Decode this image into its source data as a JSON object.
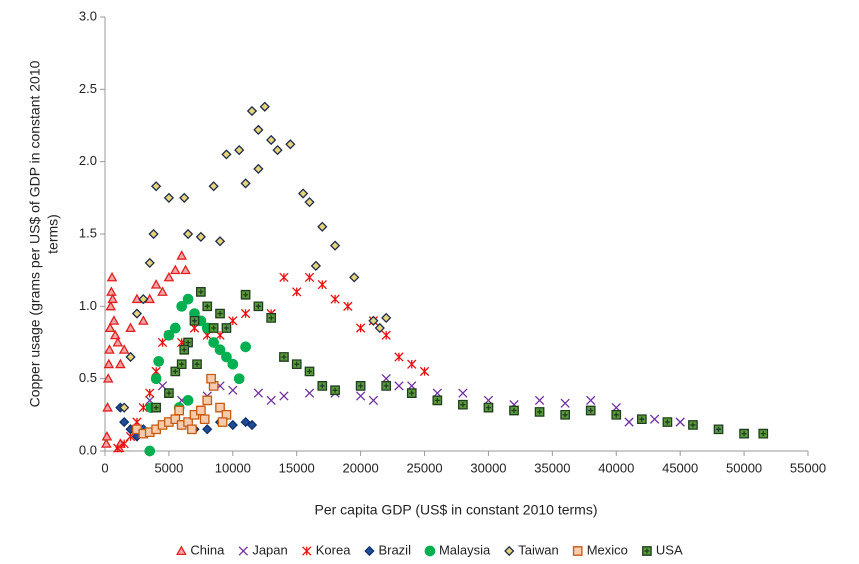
{
  "chart_data": {
    "type": "scatter",
    "xlabel": "Per capita GDP (US$ in constant 2010 terms)",
    "ylabel": [
      "Copper usage (grams per US$ of GDP in constant 2010",
      "terms)"
    ],
    "xlim": [
      0,
      55000
    ],
    "xticks": [
      0,
      5000,
      10000,
      15000,
      20000,
      25000,
      30000,
      35000,
      40000,
      45000,
      50000,
      55000
    ],
    "ylim": [
      0,
      3
    ],
    "yticks": [
      {
        "value": 0,
        "label": "0.0"
      },
      0.5,
      {
        "value": 1,
        "label": "1.0"
      },
      1.5,
      {
        "value": 2,
        "label": "2.0"
      },
      2.5,
      {
        "value": 3,
        "label": "3.0"
      }
    ],
    "legend": "bottom",
    "series": [
      {
        "name": "China",
        "marker": "triangle",
        "color": "#e02020",
        "fill": "#f4a6a6",
        "x": [
          100,
          150,
          200,
          250,
          300,
          350,
          400,
          450,
          500,
          550,
          600,
          700,
          800,
          1000,
          1200,
          1500,
          2000,
          2500,
          3000,
          3500,
          4000,
          4500,
          5000,
          5500,
          6000,
          6300,
          1100,
          1200
        ],
        "values": [
          0.05,
          0.1,
          0.3,
          0.5,
          0.6,
          0.7,
          0.85,
          1.0,
          1.1,
          1.2,
          1.05,
          0.9,
          0.8,
          0.75,
          0.6,
          0.7,
          0.85,
          1.05,
          0.9,
          1.05,
          1.15,
          1.1,
          1.2,
          1.25,
          1.35,
          1.25,
          0.02,
          0.05
        ]
      },
      {
        "name": "Japan",
        "marker": "x",
        "color": "#7030a0",
        "fill": "none",
        "x": [
          3500,
          4500,
          6000,
          8000,
          9000,
          10000,
          12000,
          13000,
          14000,
          16000,
          18000,
          20000,
          21000,
          22000,
          23000,
          24000,
          26000,
          28000,
          30000,
          32000,
          34000,
          36000,
          38000,
          40000,
          41000,
          43000,
          44000,
          45000
        ],
        "values": [
          0.35,
          0.45,
          0.35,
          0.38,
          0.45,
          0.42,
          0.4,
          0.35,
          0.38,
          0.4,
          0.4,
          0.38,
          0.35,
          0.5,
          0.45,
          0.45,
          0.4,
          0.4,
          0.35,
          0.32,
          0.35,
          0.33,
          0.35,
          0.3,
          0.2,
          0.22,
          0.2,
          0.2
        ]
      },
      {
        "name": "Korea",
        "marker": "asterisk",
        "color": "#e81010",
        "fill": "none",
        "x": [
          1000,
          1500,
          2000,
          2500,
          3000,
          3500,
          4000,
          4500,
          5000,
          6000,
          7000,
          8000,
          9000,
          10000,
          11000,
          12000,
          13000,
          14000,
          15000,
          16000,
          17000,
          18000,
          19000,
          20000,
          21000,
          22000,
          23000,
          24000,
          25000
        ],
        "values": [
          0.02,
          0.05,
          0.1,
          0.2,
          0.3,
          0.4,
          0.55,
          0.75,
          0.8,
          0.75,
          0.85,
          0.8,
          0.8,
          0.9,
          0.95,
          1.0,
          0.95,
          1.2,
          1.1,
          1.2,
          1.15,
          1.05,
          1.0,
          0.85,
          0.9,
          0.8,
          0.65,
          0.6,
          0.55
        ]
      },
      {
        "name": "Brazil",
        "marker": "diamond",
        "color": "#10306a",
        "fill": "#1f4e99",
        "x": [
          1500,
          2000,
          3000,
          4000,
          5000,
          6000,
          7000,
          8000,
          9000,
          10000,
          11000,
          11500,
          1200,
          2500
        ],
        "values": [
          0.2,
          0.15,
          0.15,
          0.15,
          0.2,
          0.18,
          0.15,
          0.15,
          0.2,
          0.18,
          0.2,
          0.18,
          0.3,
          0.1
        ]
      },
      {
        "name": "Malaysia",
        "marker": "circle",
        "color": "#00b050",
        "fill": "#00b050",
        "x": [
          3500,
          3600,
          4000,
          4200,
          5000,
          5500,
          6000,
          6500,
          7000,
          7500,
          8000,
          8500,
          9000,
          9500,
          10000,
          10500,
          11000,
          5800,
          6500
        ],
        "values": [
          0.0,
          0.3,
          0.5,
          0.62,
          0.8,
          0.85,
          1.0,
          1.05,
          0.95,
          0.9,
          0.85,
          0.75,
          0.7,
          0.65,
          0.6,
          0.5,
          0.72,
          0.3,
          0.35
        ]
      },
      {
        "name": "Taiwan",
        "marker": "diamond",
        "color": "#1f2d4a",
        "fill": "#e6d47c",
        "x": [
          1500,
          2000,
          2500,
          3000,
          3500,
          3800,
          4000,
          5000,
          6200,
          7500,
          9000,
          9500,
          10500,
          11000,
          11500,
          12000,
          12500,
          13000,
          13500,
          14500,
          15500,
          16000,
          16500,
          17000,
          18000,
          19500,
          21000,
          21500,
          22000,
          8500,
          12000,
          6500
        ],
        "values": [
          0.3,
          0.65,
          0.95,
          1.05,
          1.3,
          1.5,
          1.83,
          1.75,
          1.75,
          1.48,
          1.45,
          2.05,
          2.08,
          1.85,
          2.35,
          2.22,
          2.38,
          2.15,
          2.08,
          2.12,
          1.78,
          1.72,
          1.28,
          1.55,
          1.42,
          1.2,
          0.9,
          0.85,
          0.92,
          1.83,
          1.95,
          1.5
        ]
      },
      {
        "name": "Mexico",
        "marker": "square",
        "color": "#c55a11",
        "fill": "#f8cbad",
        "x": [
          2500,
          3000,
          3500,
          4000,
          4500,
          5000,
          5500,
          6000,
          6500,
          7000,
          7500,
          8000,
          8500,
          8300,
          9000,
          9500,
          7800,
          6800,
          5800,
          9200
        ],
        "values": [
          0.15,
          0.12,
          0.13,
          0.15,
          0.18,
          0.2,
          0.22,
          0.18,
          0.2,
          0.25,
          0.28,
          0.35,
          0.45,
          0.5,
          0.3,
          0.25,
          0.22,
          0.15,
          0.28,
          0.2
        ]
      },
      {
        "name": "USA",
        "marker": "plus-square",
        "color": "#1f3d1f",
        "fill": "#5a9a3c",
        "x": [
          4000,
          5000,
          5500,
          6000,
          6500,
          7000,
          7500,
          8000,
          8500,
          9000,
          9500,
          11000,
          12000,
          13000,
          14000,
          15000,
          16000,
          17000,
          18000,
          20000,
          22000,
          24000,
          26000,
          28000,
          30000,
          32000,
          34000,
          36000,
          38000,
          40000,
          42000,
          44000,
          46000,
          48000,
          50000,
          51500,
          7200,
          6200
        ],
        "values": [
          0.3,
          0.4,
          0.55,
          0.6,
          0.75,
          0.9,
          1.1,
          1.0,
          0.85,
          0.95,
          0.85,
          1.08,
          1.0,
          0.92,
          0.65,
          0.6,
          0.55,
          0.45,
          0.42,
          0.45,
          0.45,
          0.4,
          0.35,
          0.32,
          0.3,
          0.28,
          0.27,
          0.25,
          0.28,
          0.25,
          0.22,
          0.2,
          0.18,
          0.15,
          0.12,
          0.12,
          0.6,
          0.7
        ]
      }
    ]
  }
}
